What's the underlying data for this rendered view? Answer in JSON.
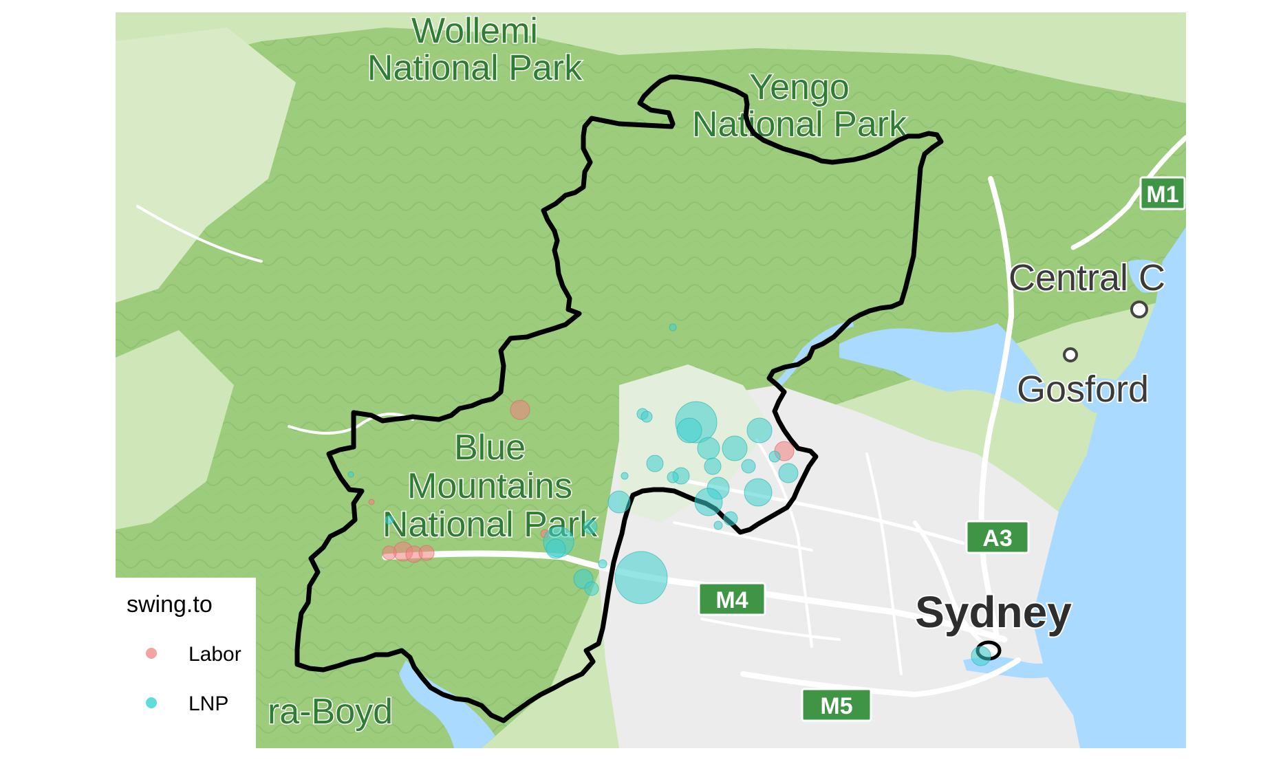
{
  "map": {
    "place_labels": [
      {
        "id": "wollemi",
        "lines": [
          "Wollemi",
          "National Park"
        ],
        "kind": "park"
      },
      {
        "id": "yengo",
        "lines": [
          "Yengo",
          "National Park"
        ],
        "kind": "park"
      },
      {
        "id": "blue-mountains",
        "lines": [
          "Blue",
          "Mountains",
          "National Park"
        ],
        "kind": "park"
      },
      {
        "id": "kanangra-boyd",
        "lines": [
          "ra-Boyd"
        ],
        "kind": "park"
      },
      {
        "id": "central-coast",
        "lines": [
          "Central C"
        ],
        "kind": "city"
      },
      {
        "id": "gosford",
        "lines": [
          "Gosford"
        ],
        "kind": "city"
      },
      {
        "id": "sydney",
        "lines": [
          "Sydney"
        ],
        "kind": "city-big"
      }
    ],
    "road_shields": [
      "M1",
      "A3",
      "M4",
      "M5"
    ],
    "colors": {
      "terrain": "#bfe0a6",
      "forest": "#9ccc7c",
      "urban": "#ececec",
      "water": "#aadaff",
      "road": "#ffffff",
      "shield": "#3f9445",
      "boundary": "#000000",
      "labor": "#f08080",
      "lnp": "#40d0d0"
    }
  },
  "legend": {
    "title": "swing.to",
    "items": [
      {
        "label": "Labor",
        "color": "#f4a3a3"
      },
      {
        "label": "LNP",
        "color": "#5fdcdc"
      }
    ]
  }
}
